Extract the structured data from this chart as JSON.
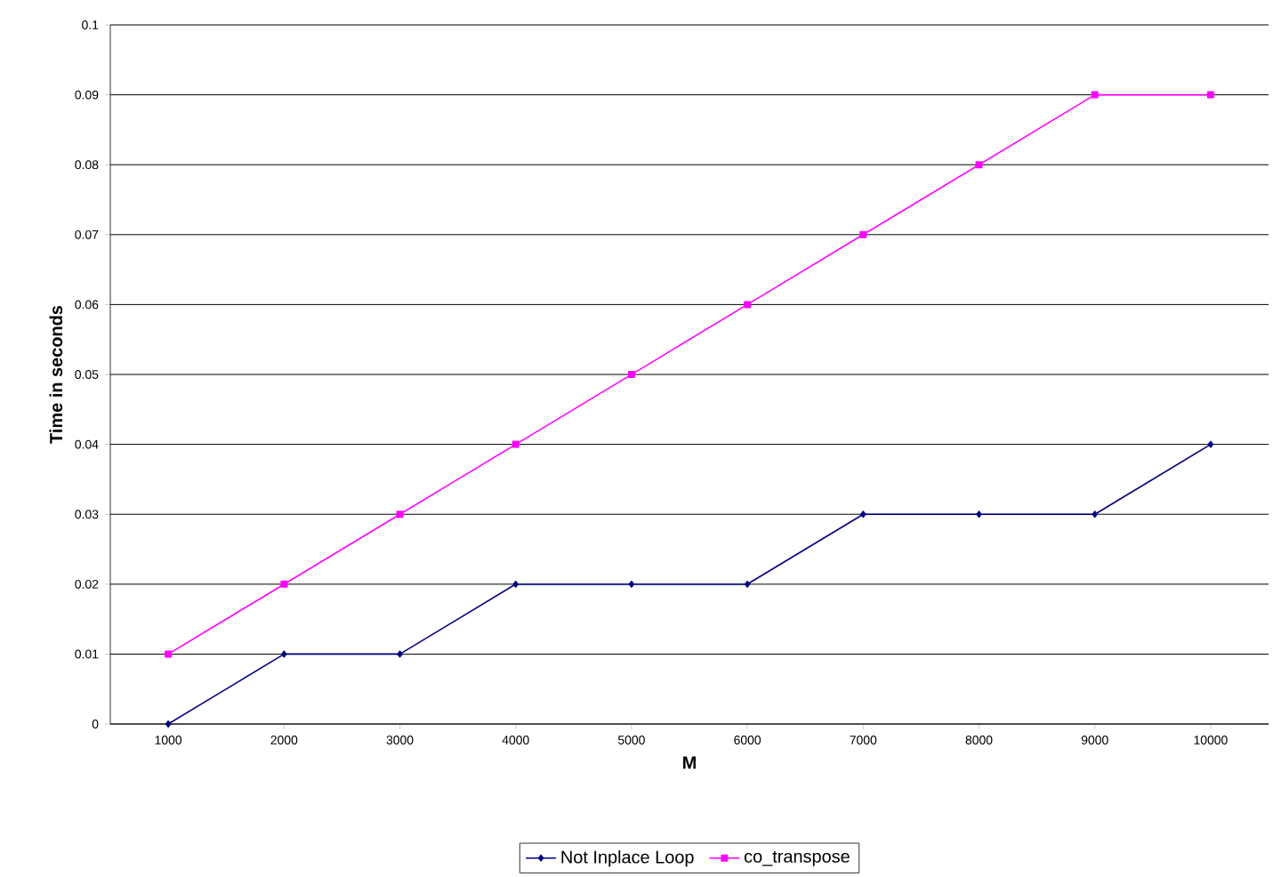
{
  "chart_data": {
    "type": "line",
    "xlabel": "M",
    "ylabel": "Time in seconds",
    "categories": [
      "1000",
      "2000",
      "3000",
      "4000",
      "5000",
      "6000",
      "7000",
      "8000",
      "9000",
      "10000"
    ],
    "series": [
      {
        "name": "Not Inplace Loop",
        "color": "#000080",
        "marker": "diamond",
        "values": [
          0,
          0.01,
          0.01,
          0.02,
          0.02,
          0.02,
          0.03,
          0.03,
          0.03,
          0.04
        ]
      },
      {
        "name": "co_transpose",
        "color": "#ff00ff",
        "marker": "square",
        "values": [
          0.01,
          0.02,
          0.03,
          0.04,
          0.05,
          0.06,
          0.07,
          0.08,
          0.09,
          0.09
        ]
      }
    ],
    "ylim": [
      0,
      0.1
    ],
    "yticks": [
      0,
      0.01,
      0.02,
      0.03,
      0.04,
      0.05,
      0.06,
      0.07,
      0.08,
      0.09,
      0.1
    ],
    "grid": "y",
    "legend": "bottom",
    "line_style": "solid"
  }
}
